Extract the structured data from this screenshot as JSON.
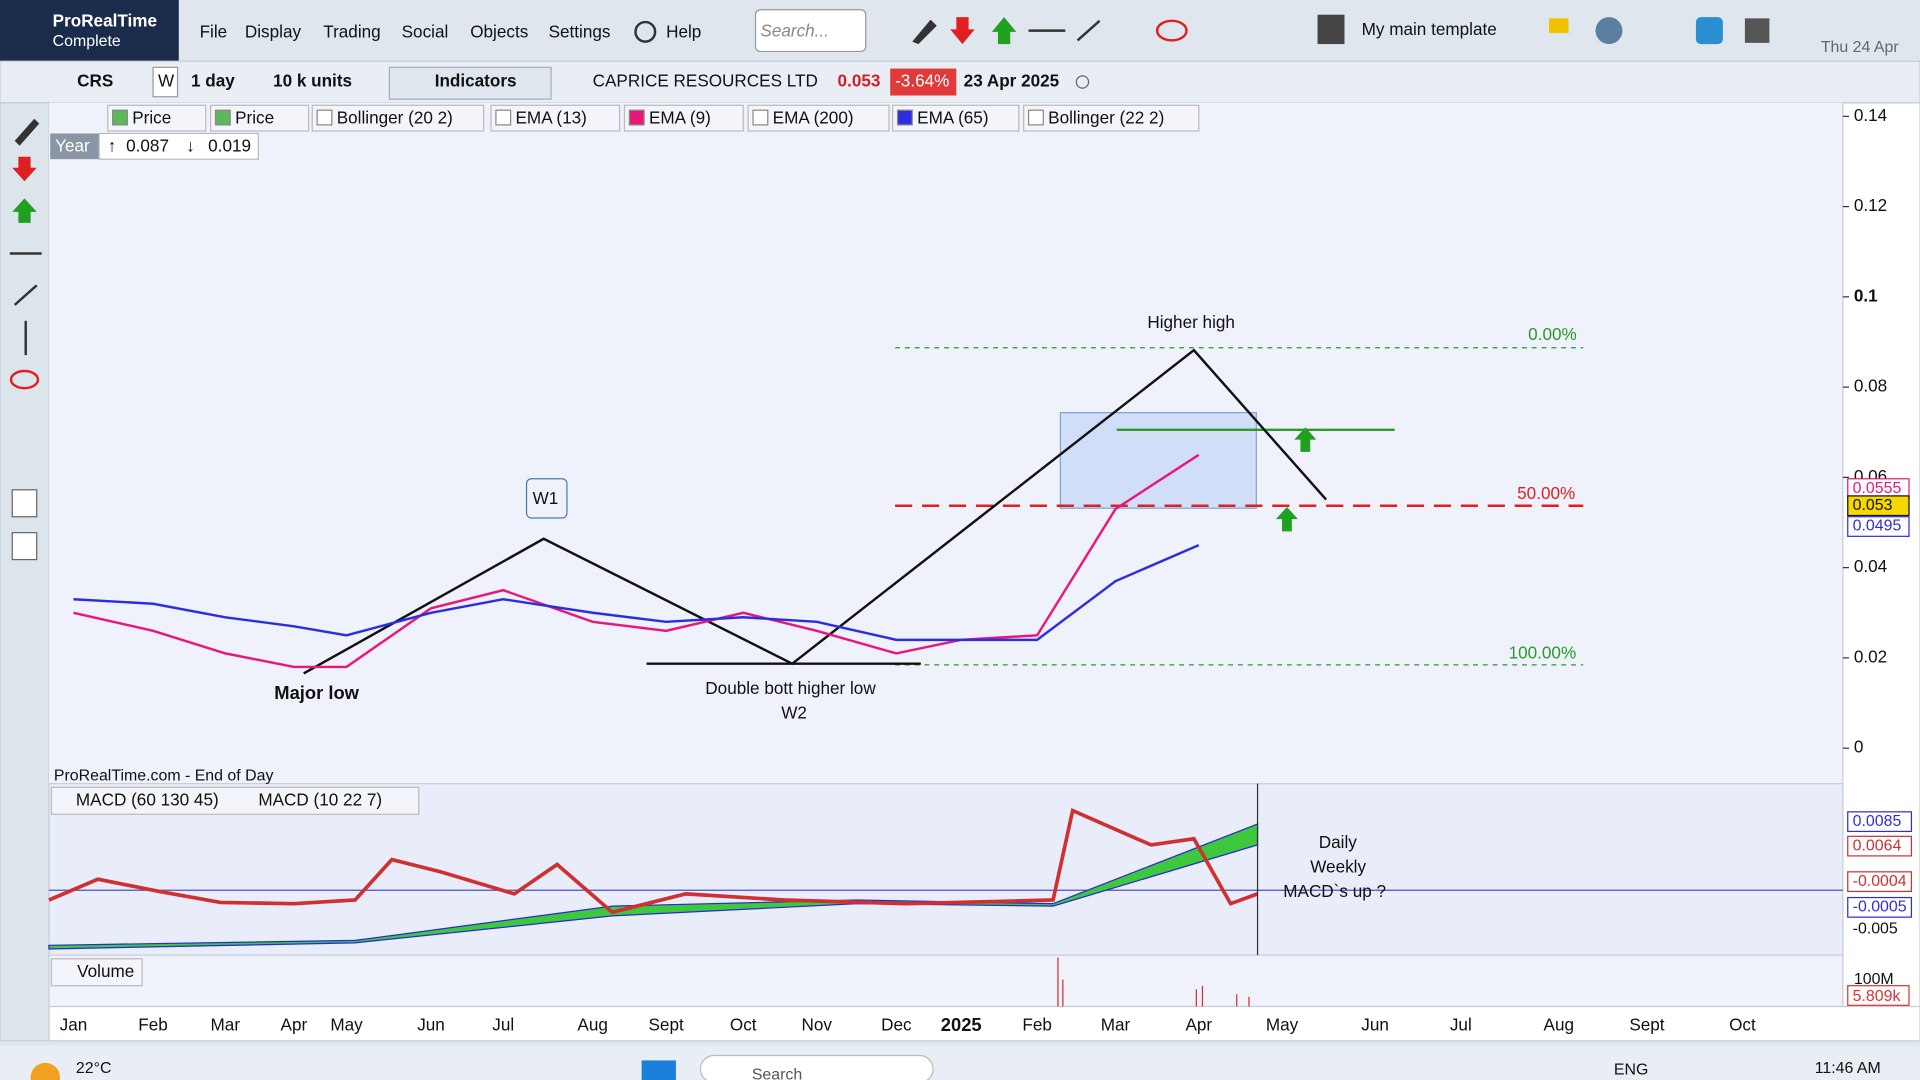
{
  "app": {
    "logo": "ProRealTime",
    "edition": "Complete",
    "menus": [
      "File",
      "Display",
      "Trading",
      "Social",
      "Objects",
      "Settings"
    ],
    "help": "Help",
    "search": "Search...",
    "template": "My main template",
    "date": "Thu 24 Apr"
  },
  "toolbar": {
    "ticker": "CRS",
    "w": "W",
    "period": "1 day",
    "units": "10 k units",
    "indicators": "Indicators",
    "name": "CAPRICE RESOURCES LTD",
    "last": "0.053",
    "change": "-3.64%",
    "date": "23 Apr 2025"
  },
  "legend": {
    "items": [
      "Price",
      "Price",
      "Bollinger (20 2)",
      "EMA (13)",
      "EMA (9)",
      "EMA (200)",
      "EMA (65)",
      "Bollinger (22 2)"
    ],
    "year": "Year",
    "high": "0.087",
    "low": "0.019",
    "source": "ProRealTime.com - End of Day"
  },
  "annotations": {
    "higher_high": "Higher high",
    "fib0": "0.00%",
    "fib50": "50.00%",
    "fib100": "100.00%",
    "w1": "W1",
    "major_low": "Major low",
    "double": "Double bott higher low",
    "w2": "W2",
    "daily": "Daily",
    "weekly": "Weekly",
    "macd_up": "MACD`s up  ?"
  },
  "chart_data": {
    "type": "line",
    "categories": [
      "Jan",
      "Feb",
      "Mar",
      "Apr",
      "May",
      "Jun",
      "Jul",
      "Aug",
      "Sept",
      "Oct",
      "Nov",
      "Dec",
      "2025",
      "Feb",
      "Mar",
      "Apr",
      "May",
      "Jun",
      "Jul",
      "Aug",
      "Sept",
      "Oct"
    ],
    "series": [
      {
        "name": "EMA (9)",
        "color": "#e8177a",
        "values": [
          0.03,
          0.026,
          0.021,
          0.018,
          0.018,
          0.031,
          0.035,
          0.028,
          0.026,
          0.03,
          0.026,
          0.021,
          0.024,
          0.025,
          0.053,
          0.065,
          null,
          null,
          null,
          null,
          null,
          null
        ]
      },
      {
        "name": "EMA (65)",
        "color": "#2d2de0",
        "values": [
          0.033,
          0.032,
          0.029,
          0.027,
          0.025,
          0.03,
          0.033,
          0.03,
          0.028,
          0.029,
          0.028,
          0.024,
          0.024,
          0.024,
          0.037,
          0.045,
          null,
          null,
          null,
          null,
          null,
          null
        ]
      }
    ],
    "ylim": [
      0,
      0.14
    ],
    "yticks": [
      0,
      0.02,
      0.04,
      0.06,
      0.08,
      0.1,
      0.12,
      0.14
    ],
    "price_labels": [
      "0.0555",
      "0.053",
      "0.0495"
    ]
  },
  "macd": {
    "labels": [
      "MACD (60 130 45)",
      "MACD (10 22 7)"
    ],
    "axis": [
      "0.0085",
      "0.0064",
      "-0.0004",
      "-0.0005",
      "-0.005"
    ]
  },
  "volume": {
    "label": "Volume",
    "axis": [
      "100M",
      "5.809k"
    ]
  },
  "taskbar": {
    "temp": "22°C",
    "search": "Search",
    "lang": "ENG",
    "time": "11:46 AM"
  }
}
